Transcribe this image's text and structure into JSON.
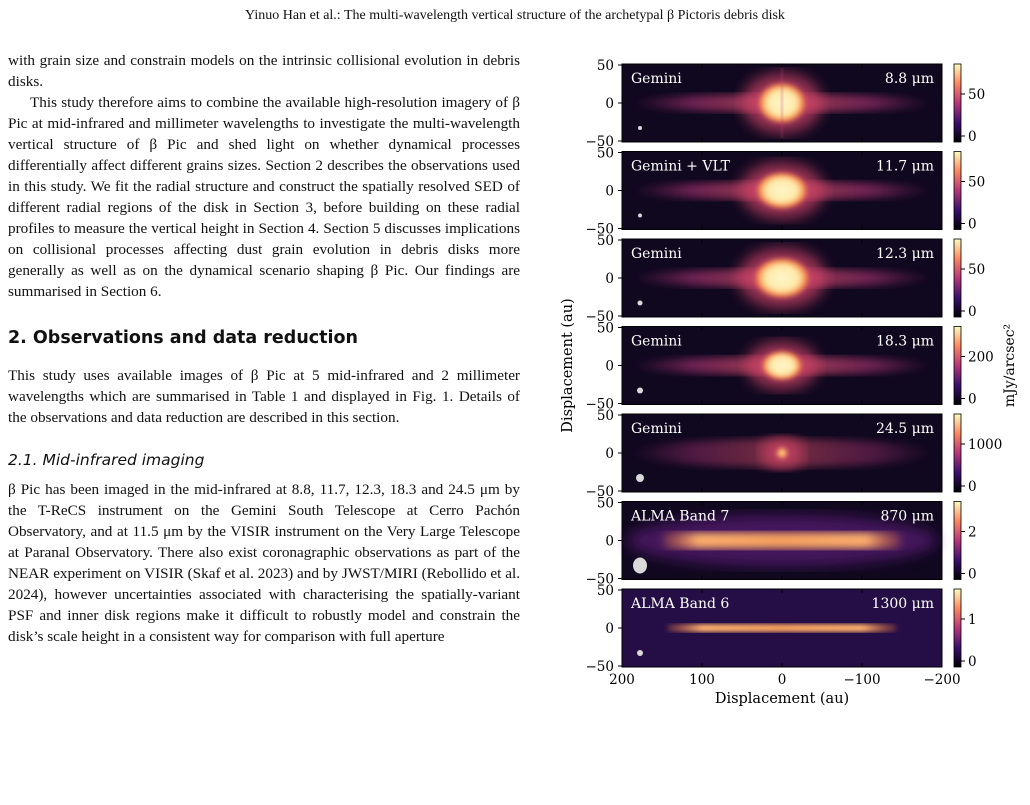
{
  "header": {
    "running_title": "Yinuo Han et al.: The multi-wavelength vertical structure of the archetypal β Pictoris debris disk"
  },
  "body": {
    "para1": "with grain size and constrain models on the intrinsic collisional evolution in debris disks.",
    "para2": "This study therefore aims to combine the available high-resolution imagery of β Pic at mid-infrared and millimeter wavelengths to investigate the multi-wavelength vertical structure of β Pic and shed light on whether dynamical processes differentially affect different grains sizes. Section 2 describes the observations used in this study. We fit the radial structure and construct the spatially resolved SED of different radial regions of the disk in Section 3, before building on these radial profiles to measure the vertical height in Section 4. Section 5 discusses implications on collisional processes affecting dust grain evolution in debris disks more generally as well as on the dynamical scenario shaping β Pic. Our findings are summarised in Section 6.",
    "section_heading": "2. Observations and data reduction",
    "para3": "This study uses available images of β Pic at 5 mid-infrared and 2 millimeter wavelengths which are summarised in Table 1 and displayed in Fig. 1. Details of the observations and data reduction are described in this section.",
    "subsection_heading": "2.1. Mid-infrared imaging",
    "para4": "β Pic has been imaged in the mid-infrared at 8.8, 11.7, 12.3, 18.3 and 24.5 μm by the T-ReCS instrument on the Gemini South Telescope at Cerro Pachón Observatory, and at 11.5 μm by the VISIR instrument on the Very Large Telescope at Paranal Observatory. There also exist coronagraphic observations as part of the NEAR experiment on VISIR (Skaf et al. 2023) and by JWST/MIRI (Rebollido et al. 2024), however uncertainties associated with characterising the spatially-variant PSF and inner disk regions make it difficult to robustly model and constrain the disk’s scale height in a consistent way for comparison with full aperture"
  },
  "figure": {
    "ylabel": "Displacement (au)",
    "xlabel": "Displacement (au)",
    "cbar_label": "mJy/arcsec²",
    "x_ticks": [
      "200",
      "100",
      "0",
      "−100",
      "−200"
    ],
    "y_ticks": [
      "50",
      "0",
      "−50"
    ],
    "panels": [
      {
        "instrument": "Gemini",
        "wavelength": "8.8 μm",
        "cbar_ticks": [
          "50",
          "0"
        ]
      },
      {
        "instrument": "Gemini + VLT",
        "wavelength": "11.7 μm",
        "cbar_ticks": [
          "50",
          "0"
        ]
      },
      {
        "instrument": "Gemini",
        "wavelength": "12.3 μm",
        "cbar_ticks": [
          "50",
          "0"
        ]
      },
      {
        "instrument": "Gemini",
        "wavelength": "18.3 μm",
        "cbar_ticks": [
          "200",
          "0"
        ]
      },
      {
        "instrument": "Gemini",
        "wavelength": "24.5 μm",
        "cbar_ticks": [
          "1000",
          "0"
        ]
      },
      {
        "instrument": "ALMA Band 7",
        "wavelength": "870 μm",
        "cbar_ticks": [
          "2",
          "0"
        ]
      },
      {
        "instrument": "ALMA Band 6",
        "wavelength": "1300 μm",
        "cbar_ticks": [
          "1",
          "0"
        ]
      }
    ],
    "colors": {
      "background": "#10081f",
      "core": "#fff3c4",
      "glow": "#f5803e",
      "mid": "#b5367a"
    }
  }
}
